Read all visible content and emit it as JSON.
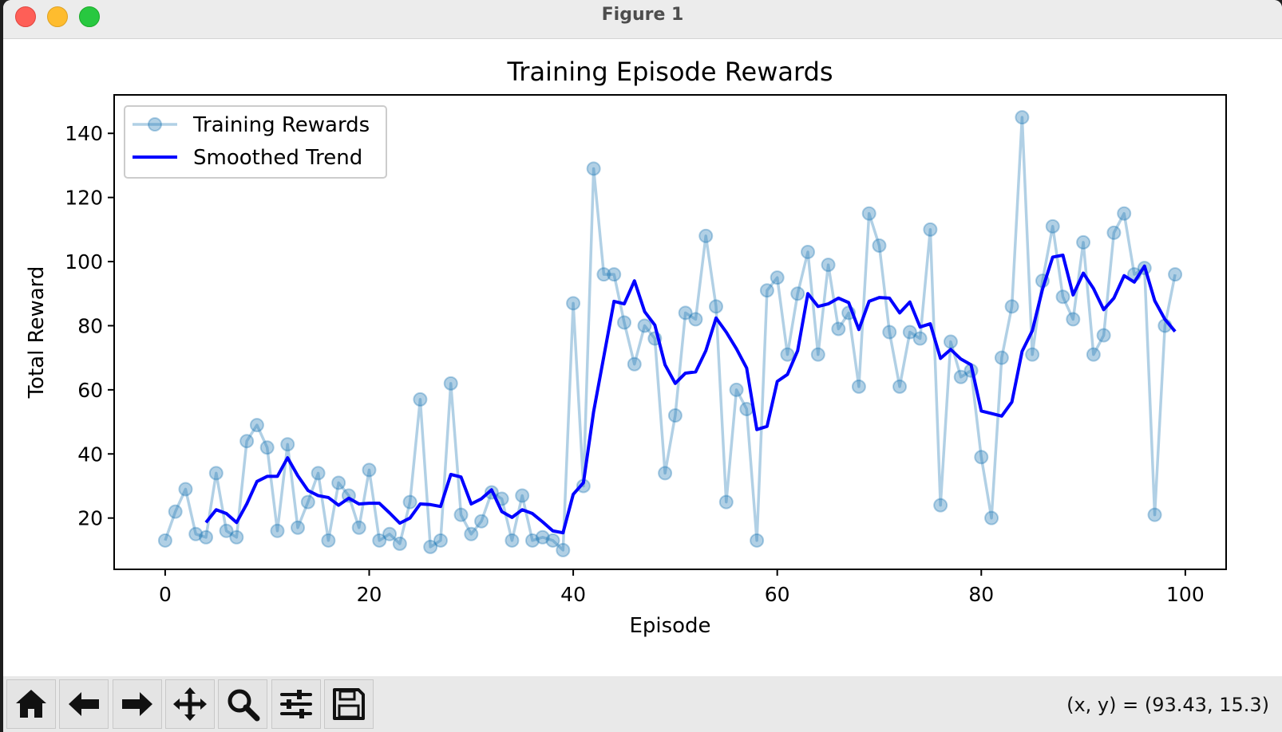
{
  "window": {
    "title": "Figure 1"
  },
  "toolbar": {
    "buttons": [
      {
        "icon": "home-icon"
      },
      {
        "icon": "back-arrow-icon"
      },
      {
        "icon": "forward-arrow-icon"
      },
      {
        "icon": "pan-move-icon"
      },
      {
        "icon": "zoom-magnifier-icon"
      },
      {
        "icon": "subplots-config-icon"
      },
      {
        "icon": "save-floppy-icon"
      }
    ],
    "coords_text": "(x, y) = (93.43, 15.3)"
  },
  "chart_data": {
    "type": "line",
    "title": "Training Episode Rewards",
    "xlabel": "Episode",
    "ylabel": "Total Reward",
    "xlim": [
      -5,
      104
    ],
    "ylim": [
      4,
      152
    ],
    "xticks": [
      0,
      20,
      40,
      60,
      80,
      100
    ],
    "yticks": [
      20,
      40,
      60,
      80,
      100,
      120,
      140
    ],
    "grid": false,
    "legend": "top-left",
    "series": [
      {
        "name": "Training Rewards",
        "color": "#1f77b4",
        "style": "line-with-circle-markers",
        "opacity": 0.35,
        "x_start": 0,
        "values": [
          13,
          22,
          29,
          15,
          14,
          34,
          16,
          14,
          44,
          49,
          42,
          16,
          43,
          17,
          25,
          34,
          13,
          31,
          27,
          17,
          35,
          13,
          15,
          12,
          25,
          57,
          11,
          13,
          62,
          21,
          15,
          19,
          28,
          26,
          13,
          27,
          13,
          14,
          13,
          10,
          87,
          30,
          129,
          96,
          96,
          81,
          68,
          80,
          76,
          34,
          52,
          84,
          82,
          108,
          86,
          25,
          60,
          54,
          13,
          91,
          95,
          71,
          90,
          103,
          71,
          99,
          79,
          84,
          61,
          115,
          105,
          78,
          61,
          78,
          76,
          110,
          24,
          75,
          64,
          66,
          39,
          20,
          70,
          86,
          145,
          71,
          94,
          111,
          89,
          82,
          106,
          71,
          77,
          109,
          115,
          96,
          98,
          21,
          80,
          96
        ]
      },
      {
        "name": "Smoothed Trend",
        "color": "#0000ff",
        "style": "line",
        "x_start": 4,
        "values": [
          18.6,
          22.6,
          21.4,
          18.6,
          24.4,
          31.4,
          33.0,
          33.0,
          38.8,
          33.2,
          28.6,
          27.0,
          26.4,
          24.0,
          26.2,
          24.4,
          24.6,
          24.6,
          21.6,
          18.4,
          20.0,
          24.4,
          24.2,
          23.6,
          33.6,
          32.8,
          24.4,
          26.0,
          28.8,
          22.0,
          20.2,
          22.6,
          21.4,
          18.8,
          16.0,
          15.4,
          27.4,
          31.0,
          53.2,
          70.4,
          87.6,
          86.8,
          94.0,
          84.4,
          80.2,
          67.8,
          62.0,
          65.2,
          65.6,
          72.2,
          82.4,
          78.0,
          72.8,
          66.8,
          47.6,
          48.6,
          62.6,
          64.8,
          72.2,
          90.0,
          86.0,
          86.8,
          88.6,
          87.2,
          78.8,
          87.6,
          88.8,
          88.6,
          84.0,
          87.4,
          79.6,
          80.6,
          69.8,
          72.6,
          69.6,
          67.8,
          53.4,
          52.6,
          51.8,
          56.2,
          72.0,
          78.4,
          91.4,
          101.4,
          102.0,
          89.6,
          96.4,
          91.6,
          85.0,
          88.6,
          95.6,
          93.6,
          98.6,
          87.8,
          82.0,
          78.2
        ]
      }
    ]
  }
}
